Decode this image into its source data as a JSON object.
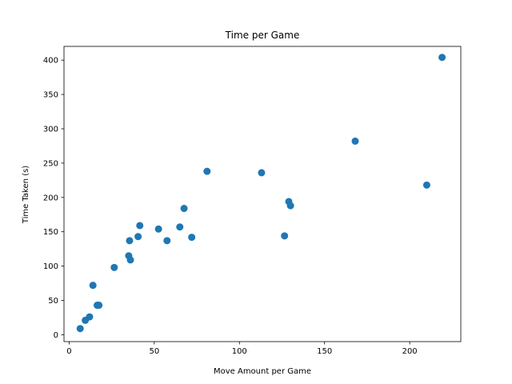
{
  "chart_data": {
    "type": "scatter",
    "title": "Time per Game",
    "xlabel": "Move Amount per Game",
    "ylabel": "Time Taken (s)",
    "xlim": [
      -3,
      230
    ],
    "ylim": [
      -10,
      420
    ],
    "xticks": [
      0,
      50,
      100,
      150,
      200
    ],
    "yticks": [
      0,
      50,
      100,
      150,
      200,
      250,
      300,
      350,
      400
    ],
    "grid": false,
    "color": "#1f77b4",
    "points": [
      {
        "x": 6.5,
        "y": 9
      },
      {
        "x": 9.5,
        "y": 21
      },
      {
        "x": 12,
        "y": 26
      },
      {
        "x": 14,
        "y": 72
      },
      {
        "x": 16.5,
        "y": 43
      },
      {
        "x": 17.5,
        "y": 43
      },
      {
        "x": 26.5,
        "y": 98
      },
      {
        "x": 35,
        "y": 115
      },
      {
        "x": 35.5,
        "y": 137
      },
      {
        "x": 36,
        "y": 109
      },
      {
        "x": 40.5,
        "y": 143
      },
      {
        "x": 41.5,
        "y": 159
      },
      {
        "x": 52.5,
        "y": 154
      },
      {
        "x": 57.5,
        "y": 137
      },
      {
        "x": 65,
        "y": 157
      },
      {
        "x": 67.5,
        "y": 184
      },
      {
        "x": 72,
        "y": 142
      },
      {
        "x": 81,
        "y": 238
      },
      {
        "x": 113,
        "y": 236
      },
      {
        "x": 126.5,
        "y": 144
      },
      {
        "x": 129,
        "y": 194
      },
      {
        "x": 130,
        "y": 188
      },
      {
        "x": 168,
        "y": 282
      },
      {
        "x": 210,
        "y": 218
      },
      {
        "x": 219,
        "y": 404
      }
    ]
  }
}
